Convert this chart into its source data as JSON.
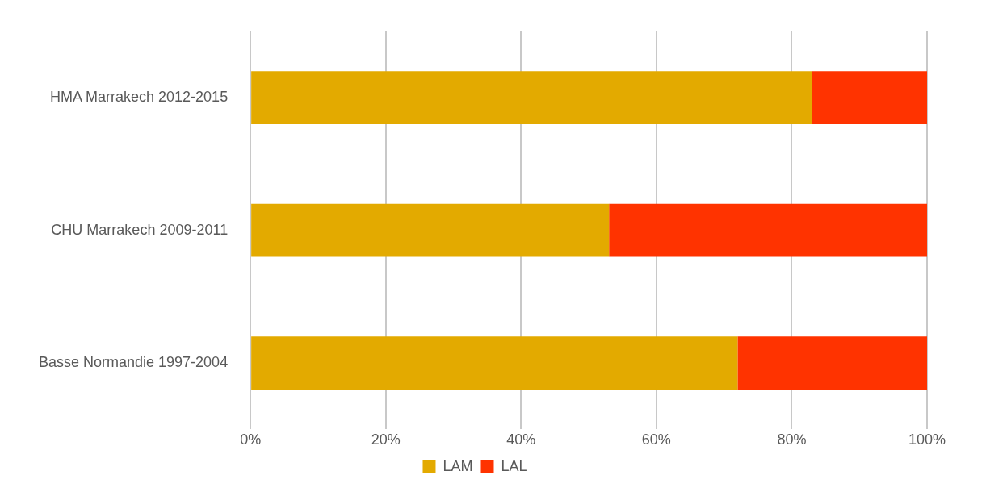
{
  "chart_data": {
    "type": "bar",
    "orientation": "horizontal",
    "stacked": true,
    "categories": [
      "HMA Marrakech 2012-2015",
      "CHU Marrakech 2009-2011",
      "Basse Normandie 1997-2004"
    ],
    "series": [
      {
        "name": "LAM",
        "color": "#e3aa00",
        "values": [
          83,
          53,
          72
        ]
      },
      {
        "name": "LAL",
        "color": "#ff3300",
        "values": [
          17,
          47,
          28
        ]
      }
    ],
    "xlim": [
      0,
      100
    ],
    "xticks": [
      {
        "value": 0,
        "label": "0%"
      },
      {
        "value": 20,
        "label": "20%"
      },
      {
        "value": 40,
        "label": "40%"
      },
      {
        "value": 60,
        "label": "60%"
      },
      {
        "value": 80,
        "label": "80%"
      },
      {
        "value": 100,
        "label": "100%"
      }
    ],
    "grid": "x",
    "legend": "bottom"
  }
}
